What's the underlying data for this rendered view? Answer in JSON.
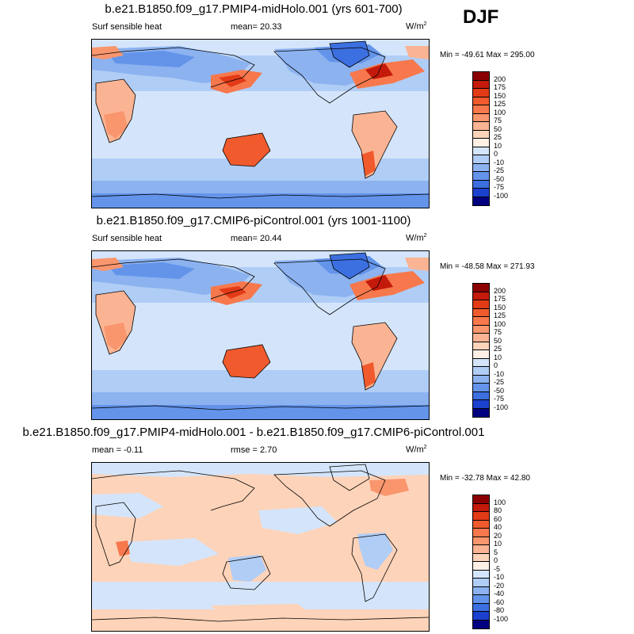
{
  "season": "DJF",
  "panels": [
    {
      "title": "b.e21.B1850.f09_g17.PMIP4-midHolo.001 (yrs 601-700)",
      "left_label": "Surf sensible heat",
      "center_label": "mean=  20.33",
      "units_base": "W/m",
      "units_sup": "2",
      "minmax": "Min = -49.61 Max = 295.00",
      "colorbar": {
        "labels": [
          "200",
          "175",
          "150",
          "125",
          "100",
          "75",
          "50",
          "25",
          "10",
          "0",
          "-10",
          "-25",
          "-50",
          "-75",
          "-100"
        ],
        "colors": [
          "#8b0000",
          "#c41a0b",
          "#e33a17",
          "#f05a2d",
          "#f7784c",
          "#f9966e",
          "#fbb493",
          "#fdd3b9",
          "#fff0e6",
          "#d4e5fb",
          "#b0cdf6",
          "#8cb2f0",
          "#6394ea",
          "#3c6fe0",
          "#1b41cf",
          "#000080"
        ]
      }
    },
    {
      "title": "b.e21.B1850.f09_g17.CMIP6-piControl.001 (yrs 1001-1100)",
      "left_label": "Surf sensible heat",
      "center_label": "mean=  20.44",
      "units_base": "W/m",
      "units_sup": "2",
      "minmax": "Min = -48.58 Max = 271.93",
      "colorbar": {
        "labels": [
          "200",
          "175",
          "150",
          "125",
          "100",
          "75",
          "50",
          "25",
          "10",
          "0",
          "-10",
          "-25",
          "-50",
          "-75",
          "-100"
        ],
        "colors": [
          "#8b0000",
          "#c41a0b",
          "#e33a17",
          "#f05a2d",
          "#f7784c",
          "#f9966e",
          "#fbb493",
          "#fdd3b9",
          "#fff0e6",
          "#d4e5fb",
          "#b0cdf6",
          "#8cb2f0",
          "#6394ea",
          "#3c6fe0",
          "#1b41cf",
          "#000080"
        ]
      }
    },
    {
      "title": "b.e21.B1850.f09_g17.PMIP4-midHolo.001 - b.e21.B1850.f09_g17.CMIP6-piControl.001",
      "left_label": "mean =  -0.11",
      "center_label": "rmse =   2.70",
      "units_base": "W/m",
      "units_sup": "2",
      "minmax": "Min = -32.78 Max =  42.80",
      "colorbar": {
        "labels": [
          "100",
          "80",
          "60",
          "40",
          "20",
          "10",
          "5",
          "0",
          "-5",
          "-10",
          "-20",
          "-40",
          "-60",
          "-80",
          "-100"
        ],
        "colors": [
          "#8b0000",
          "#c41a0b",
          "#e33a17",
          "#f05a2d",
          "#f7784c",
          "#f9966e",
          "#fbb493",
          "#fdd3b9",
          "#fff0e6",
          "#d4e5fb",
          "#b0cdf6",
          "#8cb2f0",
          "#6394ea",
          "#3c6fe0",
          "#1b41cf",
          "#000080"
        ]
      }
    }
  ]
}
